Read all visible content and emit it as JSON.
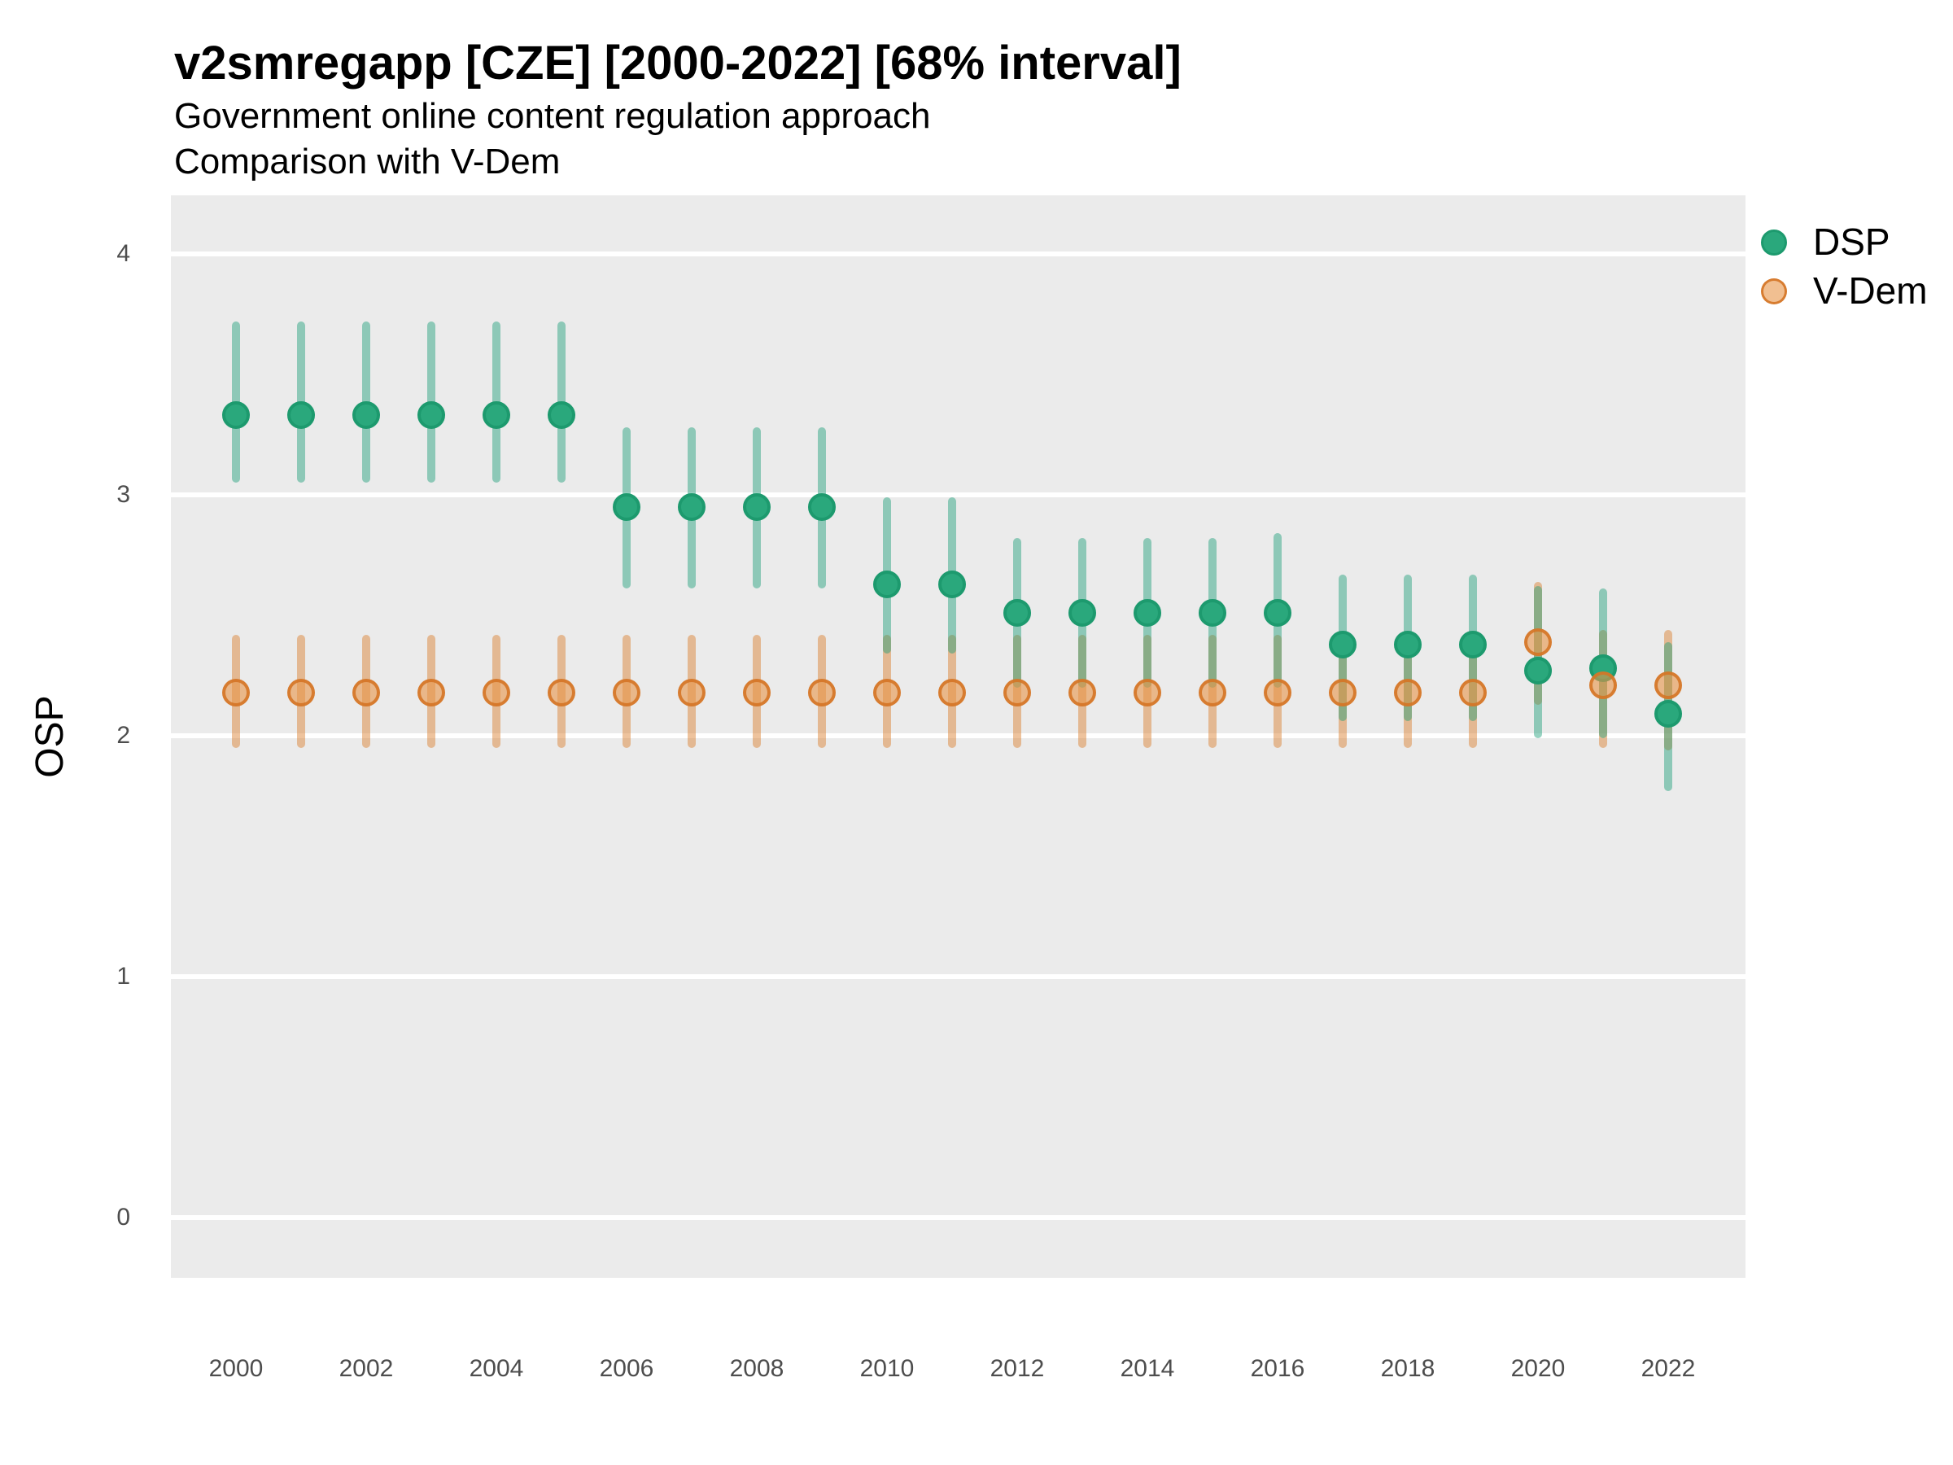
{
  "header": {
    "title": "v2smregapp [CZE] [2000-2022] [68% interval]",
    "subtitle_line1": "Government online content regulation approach",
    "subtitle_line2": "Comparison with V-Dem"
  },
  "legend": {
    "dsp_label": "DSP",
    "vdem_label": "V-Dem",
    "position": "right-top"
  },
  "colors": {
    "panel_background": "#ebebeb",
    "gridline": "#ffffff",
    "dsp_point": "#2aa87c",
    "dsp_point_stroke": "#1d9a6e",
    "dsp_interval": "rgba(27,158,119,0.45)",
    "vdem_point_fill": "rgba(231,148,72,0.60)",
    "vdem_point_stroke": "rgba(212,116,38,0.90)",
    "vdem_interval": "rgba(217,121,38,0.45)",
    "tick_text": "#4d4d4d",
    "title_text": "#000000"
  },
  "chart_data": {
    "type": "scatter",
    "title": "v2smregapp [CZE] [2000-2022] [68% interval]",
    "subtitle": [
      "Government online content regulation approach",
      "Comparison with V-Dem"
    ],
    "xlabel": "",
    "ylabel": "OSP",
    "interval": "68%",
    "ylim": [
      -0.25,
      4.24
    ],
    "y_ticks": [
      0,
      1,
      2,
      3,
      4
    ],
    "x_ticks": [
      2000,
      2002,
      2004,
      2006,
      2008,
      2010,
      2012,
      2014,
      2016,
      2018,
      2020,
      2022
    ],
    "grid": true,
    "legend_position": "right-top",
    "series": [
      {
        "name": "DSP",
        "points": [
          {
            "year": 2000,
            "value": 3.33,
            "lo": 3.05,
            "hi": 3.72
          },
          {
            "year": 2001,
            "value": 3.33,
            "lo": 3.05,
            "hi": 3.72
          },
          {
            "year": 2002,
            "value": 3.33,
            "lo": 3.05,
            "hi": 3.72
          },
          {
            "year": 2003,
            "value": 3.33,
            "lo": 3.05,
            "hi": 3.72
          },
          {
            "year": 2004,
            "value": 3.33,
            "lo": 3.05,
            "hi": 3.72
          },
          {
            "year": 2005,
            "value": 3.33,
            "lo": 3.05,
            "hi": 3.72
          },
          {
            "year": 2006,
            "value": 2.95,
            "lo": 2.61,
            "hi": 3.28
          },
          {
            "year": 2007,
            "value": 2.95,
            "lo": 2.61,
            "hi": 3.28
          },
          {
            "year": 2008,
            "value": 2.95,
            "lo": 2.61,
            "hi": 3.28
          },
          {
            "year": 2009,
            "value": 2.95,
            "lo": 2.61,
            "hi": 3.28
          },
          {
            "year": 2010,
            "value": 2.63,
            "lo": 2.34,
            "hi": 2.99
          },
          {
            "year": 2011,
            "value": 2.63,
            "lo": 2.34,
            "hi": 2.99
          },
          {
            "year": 2012,
            "value": 2.51,
            "lo": 2.2,
            "hi": 2.82
          },
          {
            "year": 2013,
            "value": 2.51,
            "lo": 2.2,
            "hi": 2.82
          },
          {
            "year": 2014,
            "value": 2.51,
            "lo": 2.2,
            "hi": 2.82
          },
          {
            "year": 2015,
            "value": 2.51,
            "lo": 2.2,
            "hi": 2.82
          },
          {
            "year": 2016,
            "value": 2.51,
            "lo": 2.2,
            "hi": 2.84
          },
          {
            "year": 2017,
            "value": 2.38,
            "lo": 2.06,
            "hi": 2.67
          },
          {
            "year": 2018,
            "value": 2.38,
            "lo": 2.06,
            "hi": 2.67
          },
          {
            "year": 2019,
            "value": 2.38,
            "lo": 2.06,
            "hi": 2.67
          },
          {
            "year": 2020,
            "value": 2.27,
            "lo": 1.99,
            "hi": 2.62
          },
          {
            "year": 2021,
            "value": 2.28,
            "lo": 1.99,
            "hi": 2.61
          },
          {
            "year": 2022,
            "value": 2.09,
            "lo": 1.77,
            "hi": 2.39
          }
        ]
      },
      {
        "name": "V-Dem",
        "points": [
          {
            "year": 2000,
            "value": 2.18,
            "lo": 1.95,
            "hi": 2.42
          },
          {
            "year": 2001,
            "value": 2.18,
            "lo": 1.95,
            "hi": 2.42
          },
          {
            "year": 2002,
            "value": 2.18,
            "lo": 1.95,
            "hi": 2.42
          },
          {
            "year": 2003,
            "value": 2.18,
            "lo": 1.95,
            "hi": 2.42
          },
          {
            "year": 2004,
            "value": 2.18,
            "lo": 1.95,
            "hi": 2.42
          },
          {
            "year": 2005,
            "value": 2.18,
            "lo": 1.95,
            "hi": 2.42
          },
          {
            "year": 2006,
            "value": 2.18,
            "lo": 1.95,
            "hi": 2.42
          },
          {
            "year": 2007,
            "value": 2.18,
            "lo": 1.95,
            "hi": 2.42
          },
          {
            "year": 2008,
            "value": 2.18,
            "lo": 1.95,
            "hi": 2.42
          },
          {
            "year": 2009,
            "value": 2.18,
            "lo": 1.95,
            "hi": 2.42
          },
          {
            "year": 2010,
            "value": 2.18,
            "lo": 1.95,
            "hi": 2.42
          },
          {
            "year": 2011,
            "value": 2.18,
            "lo": 1.95,
            "hi": 2.42
          },
          {
            "year": 2012,
            "value": 2.18,
            "lo": 1.95,
            "hi": 2.42
          },
          {
            "year": 2013,
            "value": 2.18,
            "lo": 1.95,
            "hi": 2.42
          },
          {
            "year": 2014,
            "value": 2.18,
            "lo": 1.95,
            "hi": 2.42
          },
          {
            "year": 2015,
            "value": 2.18,
            "lo": 1.95,
            "hi": 2.42
          },
          {
            "year": 2016,
            "value": 2.18,
            "lo": 1.95,
            "hi": 2.42
          },
          {
            "year": 2017,
            "value": 2.18,
            "lo": 1.95,
            "hi": 2.42
          },
          {
            "year": 2018,
            "value": 2.18,
            "lo": 1.95,
            "hi": 2.42
          },
          {
            "year": 2019,
            "value": 2.18,
            "lo": 1.95,
            "hi": 2.42
          },
          {
            "year": 2020,
            "value": 2.39,
            "lo": 2.13,
            "hi": 2.64
          },
          {
            "year": 2021,
            "value": 2.21,
            "lo": 1.95,
            "hi": 2.44
          },
          {
            "year": 2022,
            "value": 2.21,
            "lo": 1.94,
            "hi": 2.44
          }
        ]
      }
    ]
  }
}
